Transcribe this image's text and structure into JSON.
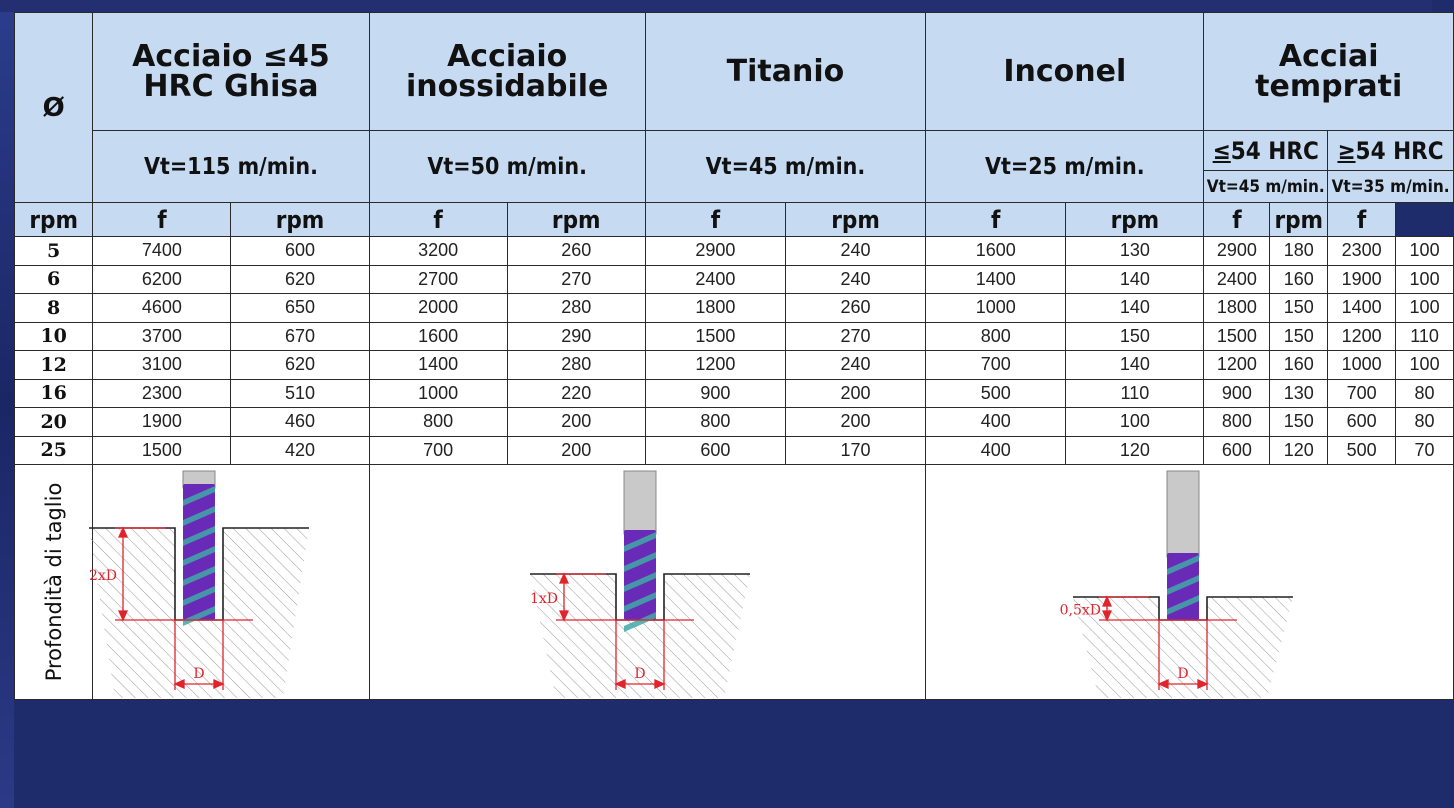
{
  "header": {
    "diameter_symbol": "Ø",
    "materials": [
      {
        "name": "Acciaio ≤45 HRC Ghisa",
        "speed": "Vt=115 m/min."
      },
      {
        "name": "Acciaio inossidabile",
        "speed": "Vt=50 m/min."
      },
      {
        "name": "Titanio",
        "speed": "Vt=45 m/min."
      },
      {
        "name": "Inconel",
        "speed": "Vt=25 m/min."
      },
      {
        "name": "Acciai temprati",
        "speed": ""
      }
    ],
    "hardened": [
      {
        "hardness_prefix": "≤",
        "hardness": "54 HRC",
        "speed": "Vt=45 m/min."
      },
      {
        "hardness_prefix": "≥",
        "hardness": "54 HRC",
        "speed": "Vt=35 m/min."
      }
    ],
    "col_rpm": "rpm",
    "col_f": "f"
  },
  "rows": [
    {
      "d": "5",
      "v": [
        "7400",
        "600",
        "3200",
        "260",
        "2900",
        "240",
        "1600",
        "130",
        "2900",
        "180",
        "2300",
        "100"
      ]
    },
    {
      "d": "6",
      "v": [
        "6200",
        "620",
        "2700",
        "270",
        "2400",
        "240",
        "1400",
        "140",
        "2400",
        "160",
        "1900",
        "100"
      ]
    },
    {
      "d": "8",
      "v": [
        "4600",
        "650",
        "2000",
        "280",
        "1800",
        "260",
        "1000",
        "140",
        "1800",
        "150",
        "1400",
        "100"
      ]
    },
    {
      "d": "10",
      "v": [
        "3700",
        "670",
        "1600",
        "290",
        "1500",
        "270",
        "800",
        "150",
        "1500",
        "150",
        "1200",
        "110"
      ]
    },
    {
      "d": "12",
      "v": [
        "3100",
        "620",
        "1400",
        "280",
        "1200",
        "240",
        "700",
        "140",
        "1200",
        "160",
        "1000",
        "100"
      ]
    },
    {
      "d": "16",
      "v": [
        "2300",
        "510",
        "1000",
        "220",
        "900",
        "200",
        "500",
        "110",
        "900",
        "130",
        "700",
        "80"
      ]
    },
    {
      "d": "20",
      "v": [
        "1900",
        "460",
        "800",
        "200",
        "800",
        "200",
        "400",
        "100",
        "800",
        "150",
        "600",
        "80"
      ]
    },
    {
      "d": "25",
      "v": [
        "1500",
        "420",
        "700",
        "200",
        "600",
        "170",
        "400",
        "120",
        "600",
        "120",
        "500",
        "70"
      ]
    }
  ],
  "depth": {
    "label": "Profondità di taglio",
    "diagrams": [
      {
        "depth_label": "2xD",
        "width_label": "D",
        "depth_factor": 2.0
      },
      {
        "depth_label": "1xD",
        "width_label": "D",
        "depth_factor": 1.0
      },
      {
        "depth_label": "0,5xD",
        "width_label": "D",
        "depth_factor": 0.5
      }
    ]
  },
  "colors": {
    "header_bg": "#c6daf2",
    "frame_bg": "#1e2c6b",
    "dimension_red": "#e0242c",
    "tool_purple": "#6a2ab8",
    "tool_teal": "#3fa8a4"
  }
}
